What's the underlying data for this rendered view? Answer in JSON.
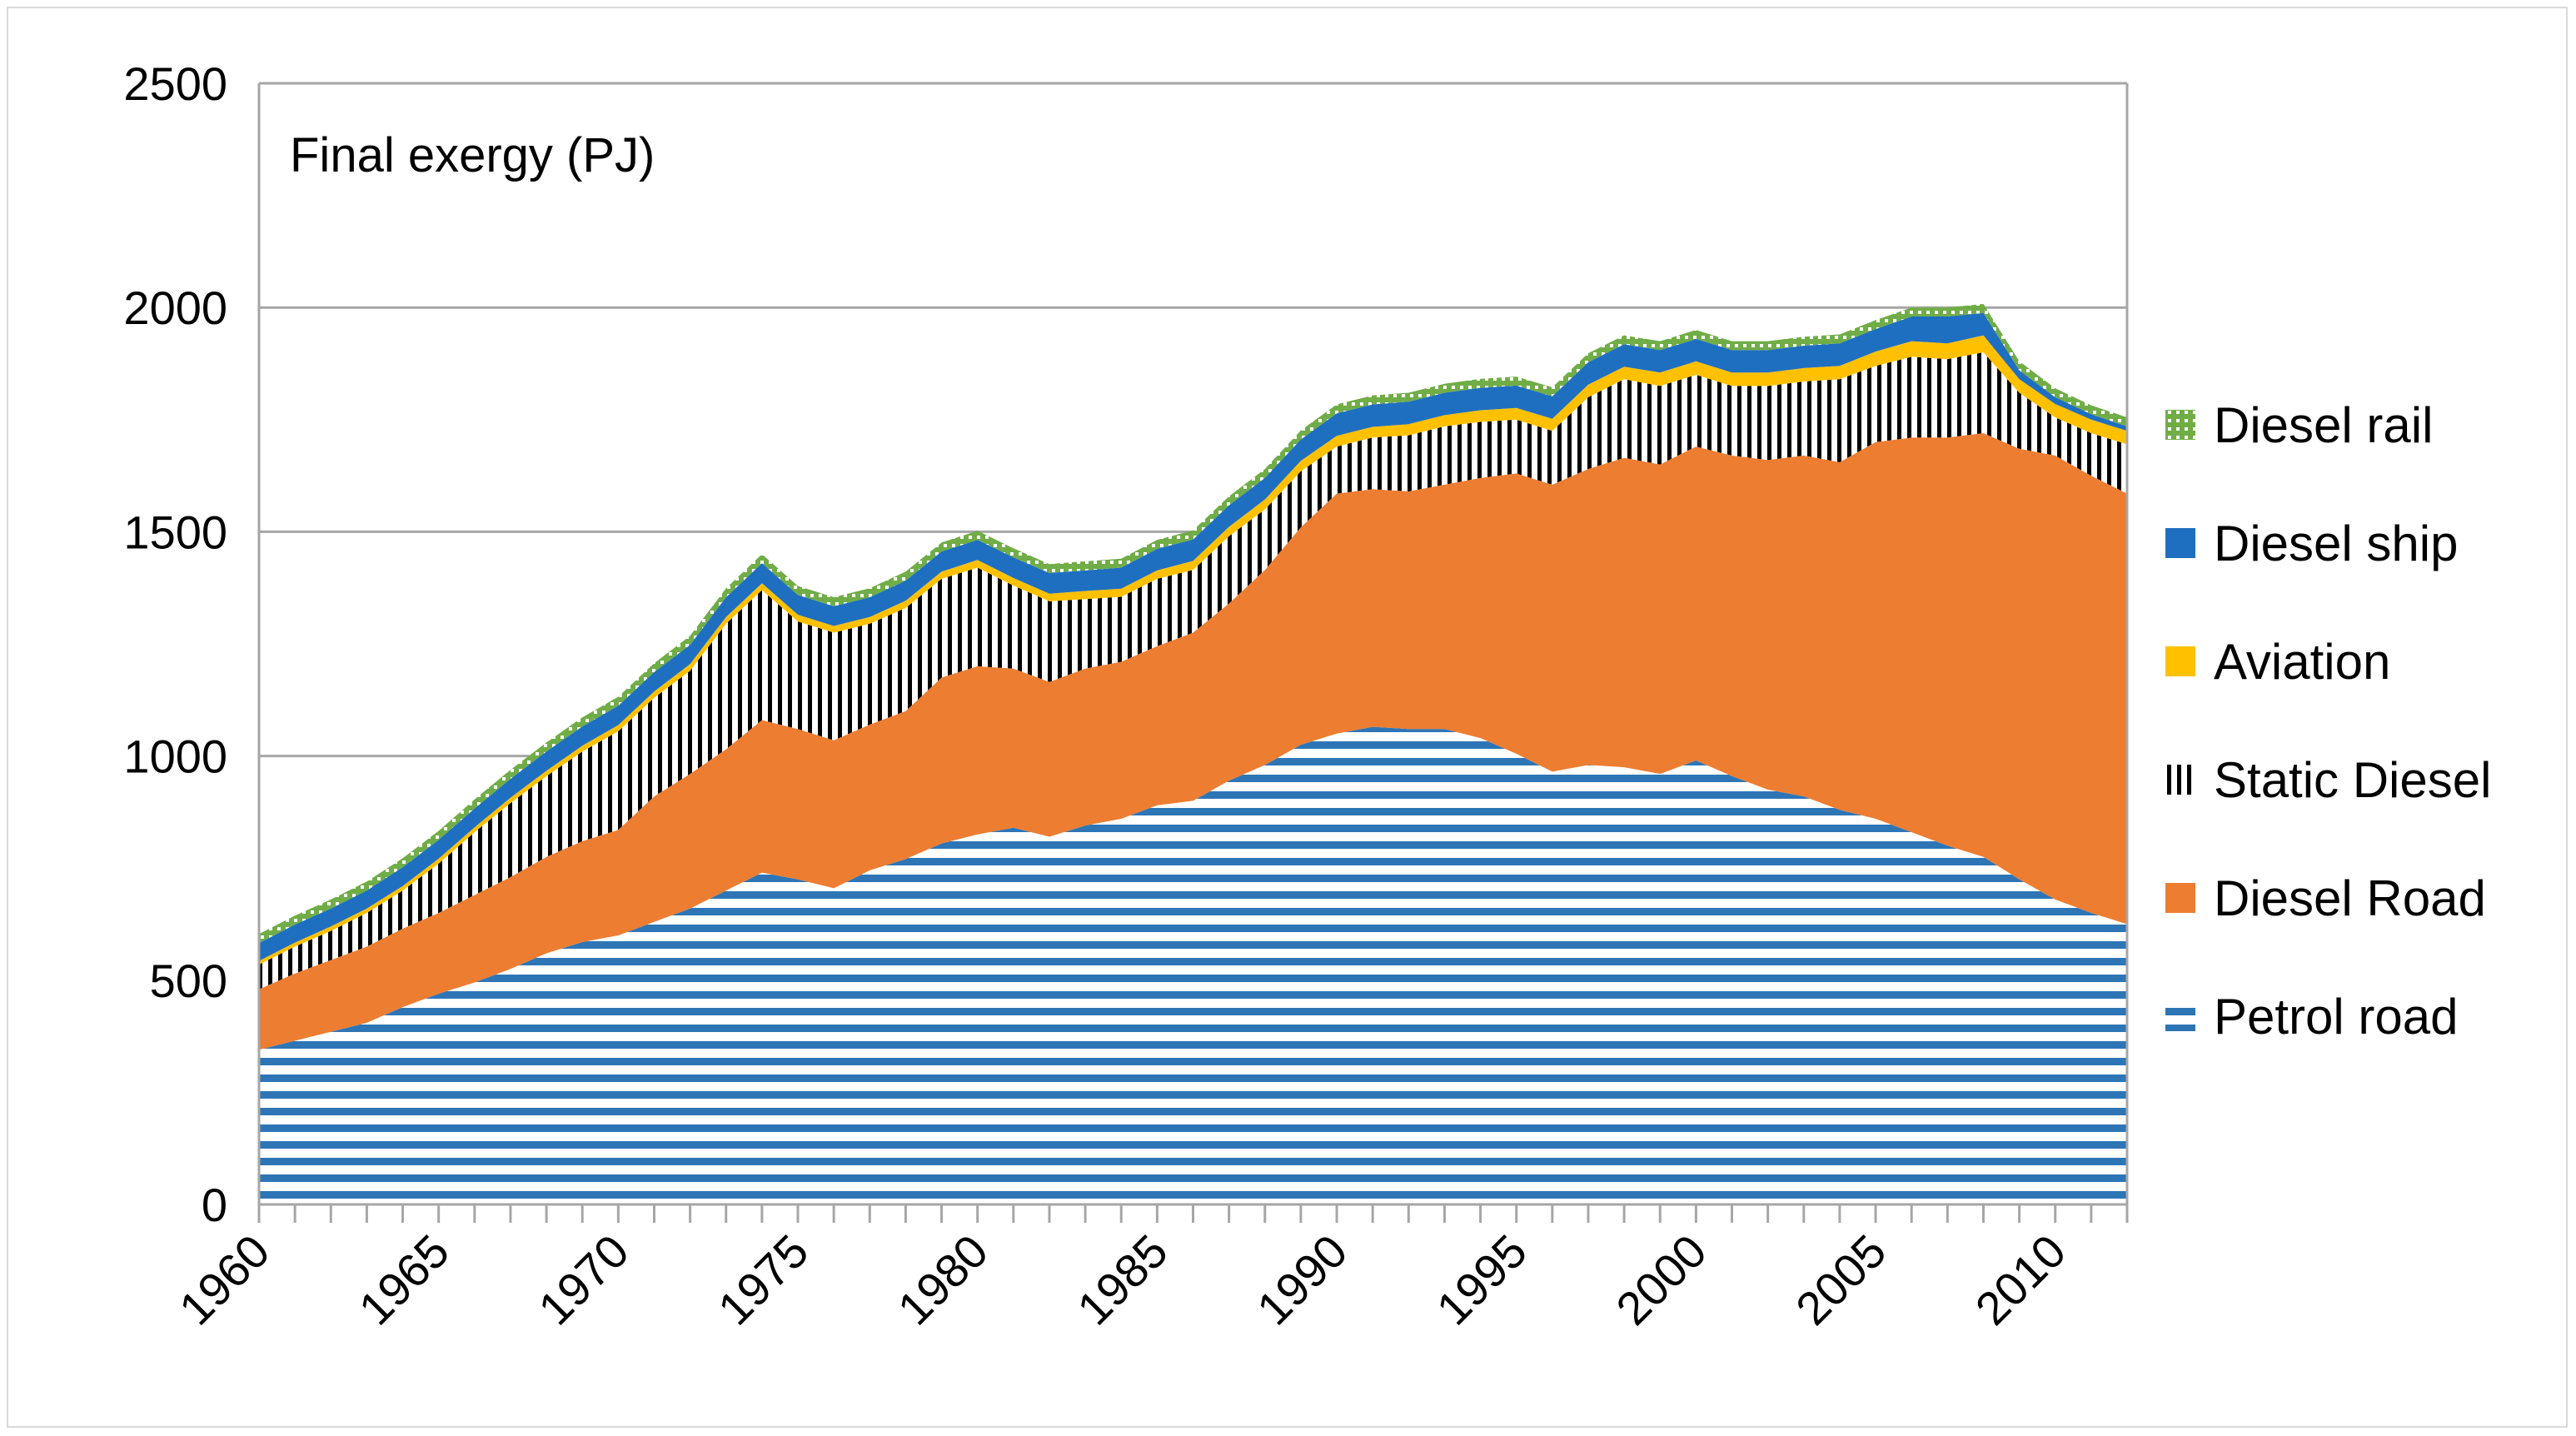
{
  "chart_data": {
    "type": "area",
    "stacked": true,
    "title": "Final  exergy (PJ)",
    "xlabel": "",
    "ylabel": "",
    "x": [
      1960,
      1961,
      1962,
      1963,
      1964,
      1965,
      1966,
      1967,
      1968,
      1969,
      1970,
      1971,
      1972,
      1973,
      1974,
      1975,
      1976,
      1977,
      1978,
      1979,
      1980,
      1981,
      1982,
      1983,
      1984,
      1985,
      1986,
      1987,
      1988,
      1989,
      1990,
      1991,
      1992,
      1993,
      1994,
      1995,
      1996,
      1997,
      1998,
      1999,
      2000,
      2001,
      2002,
      2003,
      2004,
      2005,
      2006,
      2007,
      2008,
      2009,
      2010,
      2011,
      2012
    ],
    "xlim": [
      1960,
      2012
    ],
    "ylim": [
      0,
      2500
    ],
    "y_ticks": [
      "0",
      "500",
      "1000",
      "1500",
      "2000",
      "2500"
    ],
    "y_tick_values": [
      0,
      500,
      1000,
      1500,
      2000,
      2500
    ],
    "x_ticks": [
      "1960",
      "1965",
      "1970",
      "1975",
      "1980",
      "1985",
      "1990",
      "1995",
      "2000",
      "2005",
      "2010"
    ],
    "x_tick_values": [
      1960,
      1965,
      1970,
      1975,
      1980,
      1985,
      1990,
      1995,
      2000,
      2005,
      2010
    ],
    "grid": "horizontal",
    "legend_position": "right",
    "series": [
      {
        "name": "Petrol road",
        "key": "petrol",
        "color": "#2e75b6",
        "pattern": "horizontal-lines",
        "values": [
          345,
          365,
          385,
          405,
          440,
          470,
          495,
          525,
          560,
          585,
          600,
          630,
          660,
          700,
          740,
          725,
          705,
          745,
          770,
          805,
          825,
          840,
          820,
          845,
          860,
          890,
          900,
          945,
          980,
          1025,
          1050,
          1065,
          1060,
          1060,
          1040,
          1005,
          965,
          980,
          975,
          960,
          990,
          955,
          925,
          910,
          880,
          860,
          830,
          800,
          775,
          725,
          680,
          650,
          625
        ]
      },
      {
        "name": "Diesel Road",
        "key": "dieselroad",
        "color": "#ed7d31",
        "pattern": "solid",
        "values": [
          135,
          150,
          160,
          170,
          175,
          180,
          195,
          205,
          215,
          225,
          235,
          280,
          300,
          315,
          340,
          335,
          330,
          325,
          330,
          370,
          375,
          355,
          345,
          350,
          350,
          355,
          375,
          395,
          435,
          485,
          535,
          530,
          530,
          545,
          580,
          625,
          640,
          660,
          690,
          690,
          700,
          715,
          735,
          760,
          775,
          840,
          880,
          910,
          945,
          960,
          990,
          975,
          960
        ]
      },
      {
        "name": "Static Diesel",
        "key": "static",
        "color": "#000000",
        "pattern": "vertical-lines",
        "values": [
          55,
          60,
          65,
          75,
          85,
          110,
          140,
          165,
          180,
          200,
          220,
          220,
          230,
          280,
          290,
          240,
          240,
          225,
          230,
          220,
          220,
          185,
          180,
          155,
          145,
          150,
          140,
          150,
          135,
          125,
          105,
          115,
          125,
          130,
          125,
          120,
          120,
          160,
          175,
          175,
          160,
          155,
          165,
          165,
          185,
          170,
          180,
          175,
          180,
          125,
          85,
          95,
          110
        ]
      },
      {
        "name": "Aviation",
        "key": "aviation",
        "color": "#ffc000",
        "pattern": "solid",
        "values": [
          8,
          9,
          10,
          10,
          10,
          11,
          11,
          12,
          12,
          13,
          14,
          14,
          15,
          15,
          15,
          15,
          15,
          15,
          16,
          16,
          17,
          17,
          17,
          18,
          18,
          19,
          20,
          21,
          22,
          23,
          24,
          24,
          25,
          25,
          26,
          26,
          27,
          28,
          28,
          30,
          30,
          30,
          30,
          30,
          30,
          32,
          35,
          35,
          38,
          30,
          30,
          30,
          30
        ]
      },
      {
        "name": "Diesel ship",
        "key": "ship",
        "color": "#1f6fc1",
        "pattern": "solid",
        "values": [
          40,
          40,
          40,
          40,
          42,
          42,
          42,
          42,
          43,
          43,
          43,
          43,
          43,
          44,
          45,
          44,
          44,
          44,
          45,
          45,
          45,
          46,
          46,
          46,
          47,
          48,
          48,
          48,
          48,
          48,
          50,
          50,
          50,
          50,
          50,
          50,
          50,
          50,
          50,
          50,
          50,
          50,
          50,
          50,
          50,
          50,
          55,
          60,
          50,
          20,
          15,
          12,
          10
        ]
      },
      {
        "name": "Diesel rail",
        "key": "rail",
        "color": "#70ad47",
        "pattern": "dotted",
        "values": [
          20,
          20,
          20,
          20,
          20,
          20,
          20,
          20,
          20,
          20,
          20,
          20,
          20,
          20,
          20,
          20,
          20,
          20,
          20,
          20,
          20,
          20,
          20,
          20,
          20,
          20,
          20,
          20,
          20,
          20,
          20,
          20,
          20,
          20,
          20,
          20,
          20,
          20,
          20,
          20,
          20,
          20,
          20,
          20,
          20,
          20,
          20,
          20,
          20,
          20,
          20,
          20,
          20
        ]
      }
    ],
    "legend_order": [
      "Diesel rail",
      "Diesel ship",
      "Aviation",
      "Static Diesel",
      "Diesel Road",
      "Petrol road"
    ]
  }
}
